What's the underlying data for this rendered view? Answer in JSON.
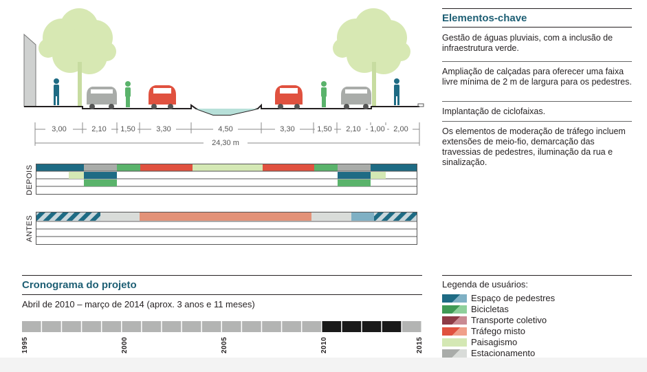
{
  "key_elements": {
    "title": "Elementos-chave",
    "items": [
      "Gestão de águas pluviais, com a inclusão de infraestrutura verde.",
      "Ampliação de calçadas para oferecer uma faixa livre mínima de 2 m de largura para os pedestres.",
      "Implantação de ciclofaixas.",
      "Os elementos de moderação de tráfego incluem extensões de meio-fio, demarcação das travessias de pedestres, iluminação da rua e sinalização."
    ]
  },
  "section": {
    "widths": [
      "3,00",
      "2,10",
      "1,50",
      "3,30",
      "4,50",
      "3,30",
      "1,50",
      "2,10",
      "1,00",
      "2,00"
    ],
    "total": "24,30 m"
  },
  "strip_labels": {
    "after": "DEPOIS",
    "before": "ANTES"
  },
  "timeline": {
    "title": "Cronograma do projeto",
    "subtitle": "Abril de 2010 – março de 2014 (aprox. 3 anos e 11 meses)",
    "year_labels": [
      "1995",
      "2000",
      "2005",
      "2010",
      "2015"
    ],
    "start_year": 1995,
    "end_year": 2015,
    "project_start": 2010,
    "project_end": 2014
  },
  "legend": {
    "title": "Legenda de usuários:",
    "items": [
      {
        "label": "Espaço de pedestres",
        "color": "#1e6b84"
      },
      {
        "label": "Bicicletas",
        "color": "#5ab36b"
      },
      {
        "label": "Transporte coletivo",
        "color": "#8e3b46"
      },
      {
        "label": "Tráfego misto",
        "color": "#e0513f"
      },
      {
        "label": "Paisagismo",
        "color": "#d4e8b4"
      },
      {
        "label": "Estacionamento",
        "color": "#a9aca9"
      }
    ]
  }
}
